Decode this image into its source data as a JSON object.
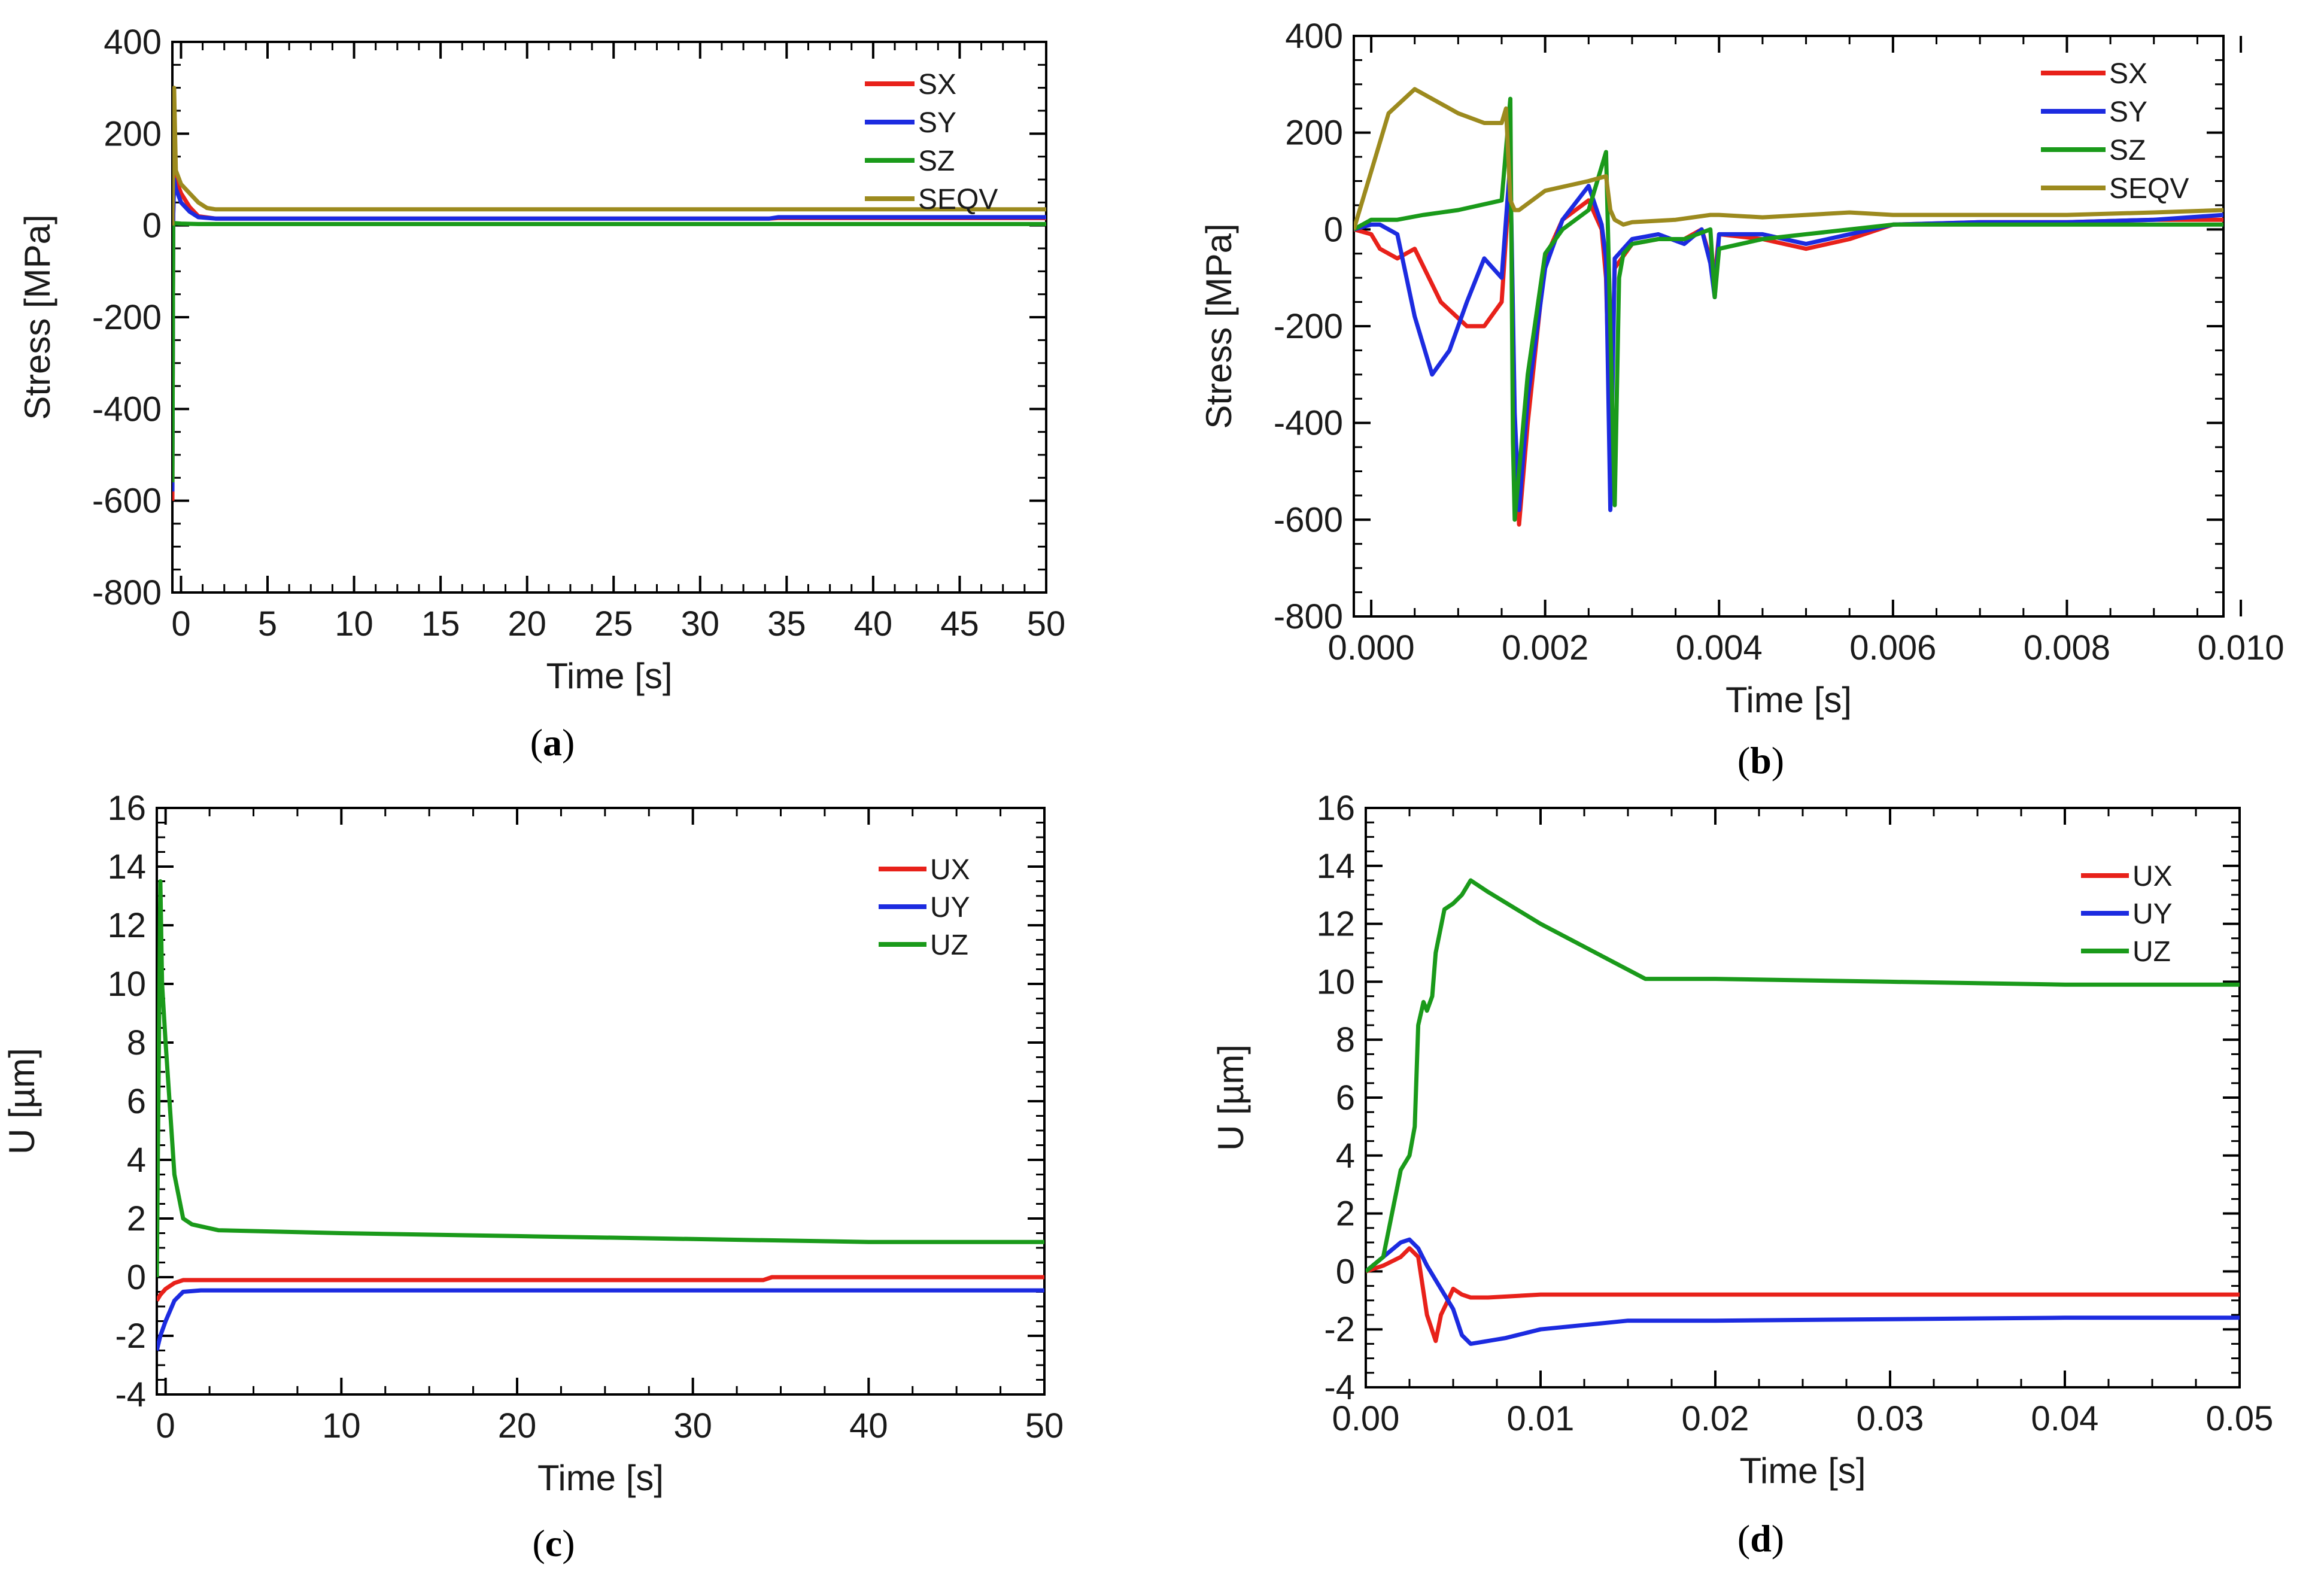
{
  "colors": {
    "SX": "#e8211a",
    "SY": "#1c2be0",
    "SZ": "#1a9a1a",
    "SEQV": "#9c8a1e",
    "UX": "#e8211a",
    "UY": "#1c2be0",
    "UZ": "#1a9a1a"
  },
  "chart_data": [
    {
      "id": "a",
      "type": "line",
      "panel_label": {
        "open": "(",
        "letter": "a",
        "close": ")"
      },
      "xlabel": "Time [s]",
      "ylabel": "Stress [MPa]",
      "xlim": [
        -0.5,
        50
      ],
      "ylim": [
        -800,
        400
      ],
      "xticks": [
        0,
        5,
        10,
        15,
        20,
        25,
        30,
        35,
        40,
        45,
        50
      ],
      "xtick_labels": [
        "0",
        "5",
        "10",
        "15",
        "20",
        "25",
        "30",
        "35",
        "40",
        "45",
        "50"
      ],
      "yticks": [
        -800,
        -600,
        -400,
        -200,
        0,
        200,
        400
      ],
      "ytick_labels": [
        "-800",
        "-600",
        "-400",
        "-200",
        "0",
        "200",
        "400"
      ],
      "legend_position": "top-right",
      "series": [
        {
          "name": "SX",
          "x": [
            -0.5,
            -0.45,
            -0.4,
            -0.3,
            0,
            0.5,
            1,
            2,
            10,
            20,
            34,
            34.5,
            50
          ],
          "y": [
            -600,
            20,
            110,
            100,
            70,
            40,
            20,
            15,
            15,
            15,
            15,
            16,
            16
          ]
        },
        {
          "name": "SY",
          "x": [
            -0.5,
            -0.45,
            -0.4,
            -0.3,
            0,
            0.5,
            1,
            2,
            10,
            20,
            34,
            34.5,
            50
          ],
          "y": [
            -580,
            20,
            100,
            80,
            50,
            30,
            18,
            15,
            15,
            15,
            15,
            18,
            18
          ]
        },
        {
          "name": "SZ",
          "x": [
            -0.5,
            -0.45,
            -0.4,
            0,
            1,
            10,
            50
          ],
          "y": [
            -560,
            0,
            5,
            4,
            3,
            3,
            3
          ]
        },
        {
          "name": "SEQV",
          "x": [
            -0.5,
            -0.45,
            -0.4,
            -0.3,
            0,
            0.5,
            1,
            1.5,
            2,
            10,
            50
          ],
          "y": [
            0,
            150,
            300,
            120,
            90,
            70,
            50,
            38,
            35,
            35,
            35
          ]
        }
      ]
    },
    {
      "id": "b",
      "type": "line",
      "panel_label": {
        "open": "(",
        "letter": "b",
        "close": ")"
      },
      "xlabel": "Time [s]",
      "ylabel": "Stress [MPa]",
      "xlim": [
        -0.0002,
        0.0098
      ],
      "ylim": [
        -800,
        400
      ],
      "xticks": [
        0,
        0.002,
        0.004,
        0.006,
        0.008,
        0.01
      ],
      "xtick_labels": [
        "0.000",
        "0.002",
        "0.004",
        "0.006",
        "0.008",
        "0.010"
      ],
      "yticks": [
        -800,
        -600,
        -400,
        -200,
        0,
        200,
        400
      ],
      "ytick_labels": [
        "-800",
        "-600",
        "-400",
        "-200",
        "0",
        "200",
        "400"
      ],
      "legend_position": "top-right",
      "series": [
        {
          "name": "SX",
          "x": [
            -0.0002,
            0,
            0.0001,
            0.0003,
            0.0005,
            0.0008,
            0.0011,
            0.0013,
            0.0015,
            0.0016,
            0.00165,
            0.0017,
            0.0018,
            0.002,
            0.0022,
            0.0025,
            0.00265,
            0.0027,
            0.00275,
            0.0028,
            0.003,
            0.0033,
            0.0036,
            0.0038,
            0.0039,
            0.00395,
            0.004,
            0.0045,
            0.005,
            0.0055,
            0.006,
            0.007,
            0.008,
            0.009,
            0.0098
          ],
          "y": [
            0,
            -10,
            -40,
            -60,
            -40,
            -150,
            -200,
            -200,
            -150,
            120,
            -400,
            -610,
            -400,
            -60,
            20,
            60,
            0,
            -100,
            -440,
            -80,
            -30,
            -20,
            -20,
            0,
            -60,
            -100,
            -10,
            -20,
            -40,
            -20,
            10,
            15,
            15,
            20,
            20
          ]
        },
        {
          "name": "SY",
          "x": [
            -0.0002,
            0,
            0.0001,
            0.0003,
            0.0005,
            0.0007,
            0.0009,
            0.0011,
            0.0013,
            0.0015,
            0.0016,
            0.00165,
            0.0017,
            0.0018,
            0.002,
            0.0022,
            0.0025,
            0.00265,
            0.0027,
            0.00275,
            0.0028,
            0.003,
            0.0033,
            0.0036,
            0.0038,
            0.0039,
            0.00395,
            0.004,
            0.0045,
            0.005,
            0.0055,
            0.006,
            0.007,
            0.008,
            0.009,
            0.0098
          ],
          "y": [
            0,
            10,
            10,
            -10,
            -180,
            -300,
            -250,
            -150,
            -60,
            -100,
            140,
            -380,
            -580,
            -350,
            -80,
            20,
            90,
            10,
            -60,
            -580,
            -60,
            -20,
            -10,
            -30,
            0,
            -70,
            -140,
            -10,
            -10,
            -30,
            -10,
            10,
            15,
            15,
            20,
            30
          ]
        },
        {
          "name": "SZ",
          "x": [
            -0.0002,
            0,
            0.0003,
            0.0006,
            0.001,
            0.0015,
            0.0016,
            0.00163,
            0.00165,
            0.0017,
            0.0018,
            0.002,
            0.0022,
            0.0025,
            0.0027,
            0.0028,
            0.00285,
            0.0029,
            0.003,
            0.0033,
            0.0036,
            0.0039,
            0.00395,
            0.004,
            0.0045,
            0.005,
            0.006,
            0.007,
            0.008,
            0.009,
            0.0098
          ],
          "y": [
            0,
            20,
            20,
            30,
            40,
            60,
            270,
            -440,
            -600,
            -500,
            -300,
            -50,
            0,
            40,
            160,
            -570,
            -100,
            -50,
            -30,
            -20,
            -20,
            0,
            -140,
            -40,
            -20,
            -10,
            10,
            10,
            10,
            10,
            10
          ]
        },
        {
          "name": "SEQV",
          "x": [
            -0.0002,
            0,
            0.0002,
            0.0005,
            0.001,
            0.0013,
            0.0015,
            0.00155,
            0.0016,
            0.00165,
            0.0017,
            0.002,
            0.0025,
            0.0027,
            0.00275,
            0.0028,
            0.0029,
            0.003,
            0.0035,
            0.0039,
            0.004,
            0.0045,
            0.005,
            0.0055,
            0.006,
            0.007,
            0.008,
            0.009,
            0.0098
          ],
          "y": [
            0,
            120,
            240,
            290,
            240,
            220,
            220,
            250,
            60,
            40,
            40,
            80,
            100,
            110,
            40,
            20,
            10,
            15,
            20,
            30,
            30,
            25,
            30,
            35,
            30,
            30,
            30,
            35,
            40
          ]
        }
      ]
    },
    {
      "id": "c",
      "type": "line",
      "panel_label": {
        "open": "(",
        "letter": "c",
        "close": ")"
      },
      "xlabel": "Time [s]",
      "ylabel": "U [µm]",
      "xlim": [
        -0.5,
        50
      ],
      "ylim": [
        -4,
        16
      ],
      "xticks": [
        0,
        10,
        20,
        30,
        40,
        50
      ],
      "xtick_labels": [
        "0",
        "10",
        "20",
        "30",
        "40",
        "50"
      ],
      "yticks": [
        -4,
        -2,
        0,
        2,
        4,
        6,
        8,
        10,
        12,
        14,
        16
      ],
      "ytick_labels": [
        "-4",
        "-2",
        "0",
        "2",
        "4",
        "6",
        "8",
        "10",
        "12",
        "14",
        "16"
      ],
      "legend_position": "top-right",
      "series": [
        {
          "name": "UX",
          "x": [
            -0.5,
            -0.3,
            0,
            0.5,
            1,
            2,
            10,
            34,
            34.5,
            50
          ],
          "y": [
            -0.8,
            -0.6,
            -0.4,
            -0.2,
            -0.1,
            -0.1,
            -0.1,
            -0.1,
            0,
            0
          ]
        },
        {
          "name": "UY",
          "x": [
            -0.5,
            -0.3,
            0,
            0.5,
            1,
            2,
            10,
            50
          ],
          "y": [
            -2.5,
            -2,
            -1.5,
            -0.8,
            -0.5,
            -0.45,
            -0.45,
            -0.45
          ]
        },
        {
          "name": "UZ",
          "x": [
            -0.5,
            -0.3,
            -0.2,
            0,
            0.5,
            1,
            1.5,
            3,
            10,
            20,
            30,
            40,
            50
          ],
          "y": [
            0,
            13.5,
            10,
            8,
            3.5,
            2,
            1.8,
            1.6,
            1.5,
            1.4,
            1.3,
            1.2,
            1.2
          ]
        }
      ]
    },
    {
      "id": "d",
      "type": "line",
      "panel_label": {
        "open": "(",
        "letter": "d",
        "close": ")"
      },
      "xlabel": "Time [s]",
      "ylabel": "U [µm]",
      "xlim": [
        0,
        0.05
      ],
      "ylim": [
        -4,
        16
      ],
      "xticks": [
        0,
        0.01,
        0.02,
        0.03,
        0.04,
        0.05
      ],
      "xtick_labels": [
        "0.00",
        "0.01",
        "0.02",
        "0.03",
        "0.04",
        "0.05"
      ],
      "yticks": [
        -4,
        -2,
        0,
        2,
        4,
        6,
        8,
        10,
        12,
        14,
        16
      ],
      "ytick_labels": [
        "-4",
        "-2",
        "0",
        "2",
        "4",
        "6",
        "8",
        "10",
        "12",
        "14",
        "16"
      ],
      "legend_position": "top-right",
      "series": [
        {
          "name": "UX",
          "x": [
            0,
            0.001,
            0.002,
            0.0025,
            0.003,
            0.0035,
            0.004,
            0.0043,
            0.0047,
            0.005,
            0.0055,
            0.006,
            0.007,
            0.01,
            0.02,
            0.05
          ],
          "y": [
            0,
            0.2,
            0.5,
            0.8,
            0.5,
            -1.5,
            -2.4,
            -1.5,
            -1.0,
            -0.6,
            -0.8,
            -0.9,
            -0.9,
            -0.8,
            -0.8,
            -0.8
          ]
        },
        {
          "name": "UY",
          "x": [
            0,
            0.001,
            0.002,
            0.0025,
            0.003,
            0.0035,
            0.004,
            0.0045,
            0.005,
            0.0055,
            0.006,
            0.008,
            0.01,
            0.015,
            0.02,
            0.04,
            0.05
          ],
          "y": [
            0,
            0.5,
            1.0,
            1.1,
            0.8,
            0.2,
            -0.3,
            -0.8,
            -1.3,
            -2.2,
            -2.5,
            -2.3,
            -2.0,
            -1.7,
            -1.7,
            -1.6,
            -1.6
          ]
        },
        {
          "name": "UZ",
          "x": [
            0,
            0.001,
            0.0015,
            0.002,
            0.0025,
            0.0028,
            0.003,
            0.0033,
            0.0035,
            0.0038,
            0.004,
            0.0045,
            0.005,
            0.0055,
            0.006,
            0.007,
            0.01,
            0.016,
            0.02,
            0.03,
            0.04,
            0.05
          ],
          "y": [
            0,
            0.5,
            2,
            3.5,
            4,
            5,
            8.5,
            9.3,
            9,
            9.5,
            11,
            12.5,
            12.7,
            13,
            13.5,
            13.1,
            12,
            10.1,
            10.1,
            10,
            9.9,
            9.9
          ]
        }
      ]
    }
  ]
}
